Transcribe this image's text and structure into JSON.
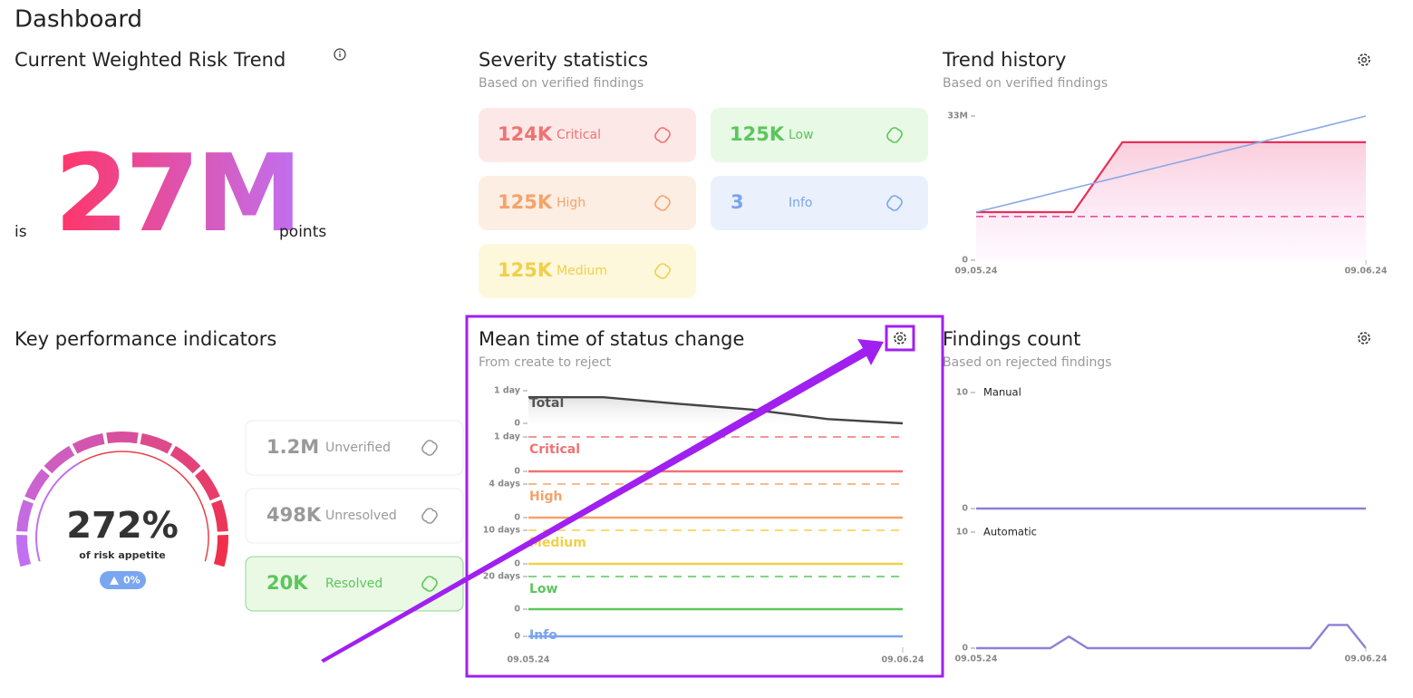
{
  "header": {
    "title": "Dashboard"
  },
  "risk": {
    "title": "Current Weighted Risk Trend",
    "prefix": "is",
    "value": "27M",
    "suffix": "points"
  },
  "severity": {
    "title": "Severity statistics",
    "subtitle": "Based on verified findings",
    "cards": [
      {
        "count": "124K",
        "label": "Critical",
        "color": "#f07272",
        "background": "#fde8e8"
      },
      {
        "count": "125K",
        "label": "Low",
        "color": "#5cc65c",
        "background": "#e8f9e6"
      },
      {
        "count": "125K",
        "label": "High",
        "color": "#f4a36a",
        "background": "#fdeee3"
      },
      {
        "count": "3",
        "label": "Info",
        "color": "#7aa4ee",
        "background": "#eaf1fd"
      },
      {
        "count": "125K",
        "label": "Medium",
        "color": "#f2cf48",
        "background": "#fdf8dc"
      }
    ]
  },
  "trend": {
    "title": "Trend history",
    "subtitle": "Based on verified findings",
    "chart_data": {
      "type": "line",
      "categories": [
        "09.05.24",
        null,
        null,
        null,
        null,
        null,
        null,
        null,
        "09.06.24"
      ],
      "ylim": [
        0,
        33000000
      ],
      "yticks": [
        0,
        {
          "value": 33000000,
          "label": "33M"
        }
      ],
      "series": [
        {
          "color": "#e8305a",
          "fill": true,
          "values": [
            11000000,
            11000000,
            11000000,
            27000000,
            27000000,
            27000000,
            27000000,
            27000000,
            27000000
          ]
        },
        {
          "color": "#8aa8e8",
          "values": [
            11000000,
            13750000,
            16500000,
            19250000,
            22000000,
            24750000,
            27500000,
            30250000,
            33000000
          ]
        },
        {
          "color": "#e8509a",
          "dashed": true,
          "values": [
            10000000,
            10000000,
            10000000,
            10000000,
            10000000,
            10000000,
            10000000,
            10000000,
            10000000
          ]
        }
      ]
    }
  },
  "kpi": {
    "title": "Key performance indicators",
    "gauge_value": "272%",
    "gauge_caption": "of risk appetite",
    "badge": "0%",
    "cards": [
      {
        "count": "1.2M",
        "label": "Unverified"
      },
      {
        "count": "498K",
        "label": "Unresolved"
      },
      {
        "count": "20K",
        "label": "Resolved"
      }
    ]
  },
  "mean_time": {
    "title": "Mean time of status change",
    "subtitle": "From create to reject",
    "chart_data": {
      "type": "line",
      "categories": [
        "09.05.24",
        null,
        null,
        null,
        null,
        "09.06.24"
      ],
      "panels": [
        {
          "name": "Total",
          "color": "#444444",
          "fill": true,
          "ylim": [
            0,
            1
          ],
          "yticks": [
            0,
            {
              "value": 1,
              "label": "1 day"
            }
          ],
          "values": [
            0.8,
            0.8,
            0.6,
            0.42,
            0.13,
            0
          ]
        },
        {
          "name": "Critical",
          "color": "#f07272",
          "dashed": true,
          "ylim": [
            0,
            1
          ],
          "yticks": [
            0,
            {
              "value": 1,
              "label": "1 day"
            }
          ],
          "values": [
            0,
            0,
            0,
            0,
            0,
            0
          ]
        },
        {
          "name": "High",
          "color": "#f4a36a",
          "dashed": true,
          "ylim": [
            0,
            4
          ],
          "yticks": [
            0,
            {
              "value": 4,
              "label": "4 days"
            }
          ],
          "values": [
            0,
            0,
            0,
            0,
            0,
            0
          ]
        },
        {
          "name": "Medium",
          "color": "#f2cf48",
          "dashed": true,
          "ylim": [
            0,
            10
          ],
          "yticks": [
            0,
            {
              "value": 10,
              "label": "10 days"
            }
          ],
          "values": [
            0,
            0,
            0,
            0,
            0,
            0
          ]
        },
        {
          "name": "Low",
          "color": "#5cc65c",
          "dashed": true,
          "ylim": [
            0,
            20
          ],
          "yticks": [
            0,
            {
              "value": 20,
              "label": "20 days"
            }
          ],
          "values": [
            0,
            0,
            0,
            0,
            0,
            0
          ]
        },
        {
          "name": "Info",
          "color": "#7aa4ee",
          "ylim": [
            0,
            1
          ],
          "yticks": [
            0
          ],
          "values": [
            0,
            0,
            0,
            0,
            0,
            0
          ]
        }
      ]
    }
  },
  "findings": {
    "title": "Findings count",
    "subtitle": "Based on rejected findings",
    "chart_data": {
      "type": "line",
      "categories": [
        "09.05.24",
        null,
        null,
        null,
        null,
        null,
        null,
        null,
        null,
        null,
        null,
        null,
        null,
        null,
        null,
        null,
        null,
        null,
        null,
        null,
        null,
        "09.06.24"
      ],
      "panels": [
        {
          "name": "Manual",
          "color": "#8f7fd6",
          "ylim": [
            0,
            10
          ],
          "yticks": [
            0,
            10
          ],
          "values": [
            0,
            0,
            0,
            0,
            0,
            0,
            0,
            0,
            0,
            0,
            0,
            0,
            0,
            0,
            0,
            0,
            0,
            0,
            0,
            0,
            0,
            0
          ]
        },
        {
          "name": "Automatic",
          "color": "#8f7fd6",
          "ylim": [
            0,
            10
          ],
          "yticks": [
            0,
            10
          ],
          "values": [
            0,
            0,
            0,
            0,
            0,
            1,
            0,
            0,
            0,
            0,
            0,
            0,
            0,
            0,
            0,
            0,
            0,
            0,
            0,
            2,
            2,
            0
          ]
        }
      ]
    }
  }
}
